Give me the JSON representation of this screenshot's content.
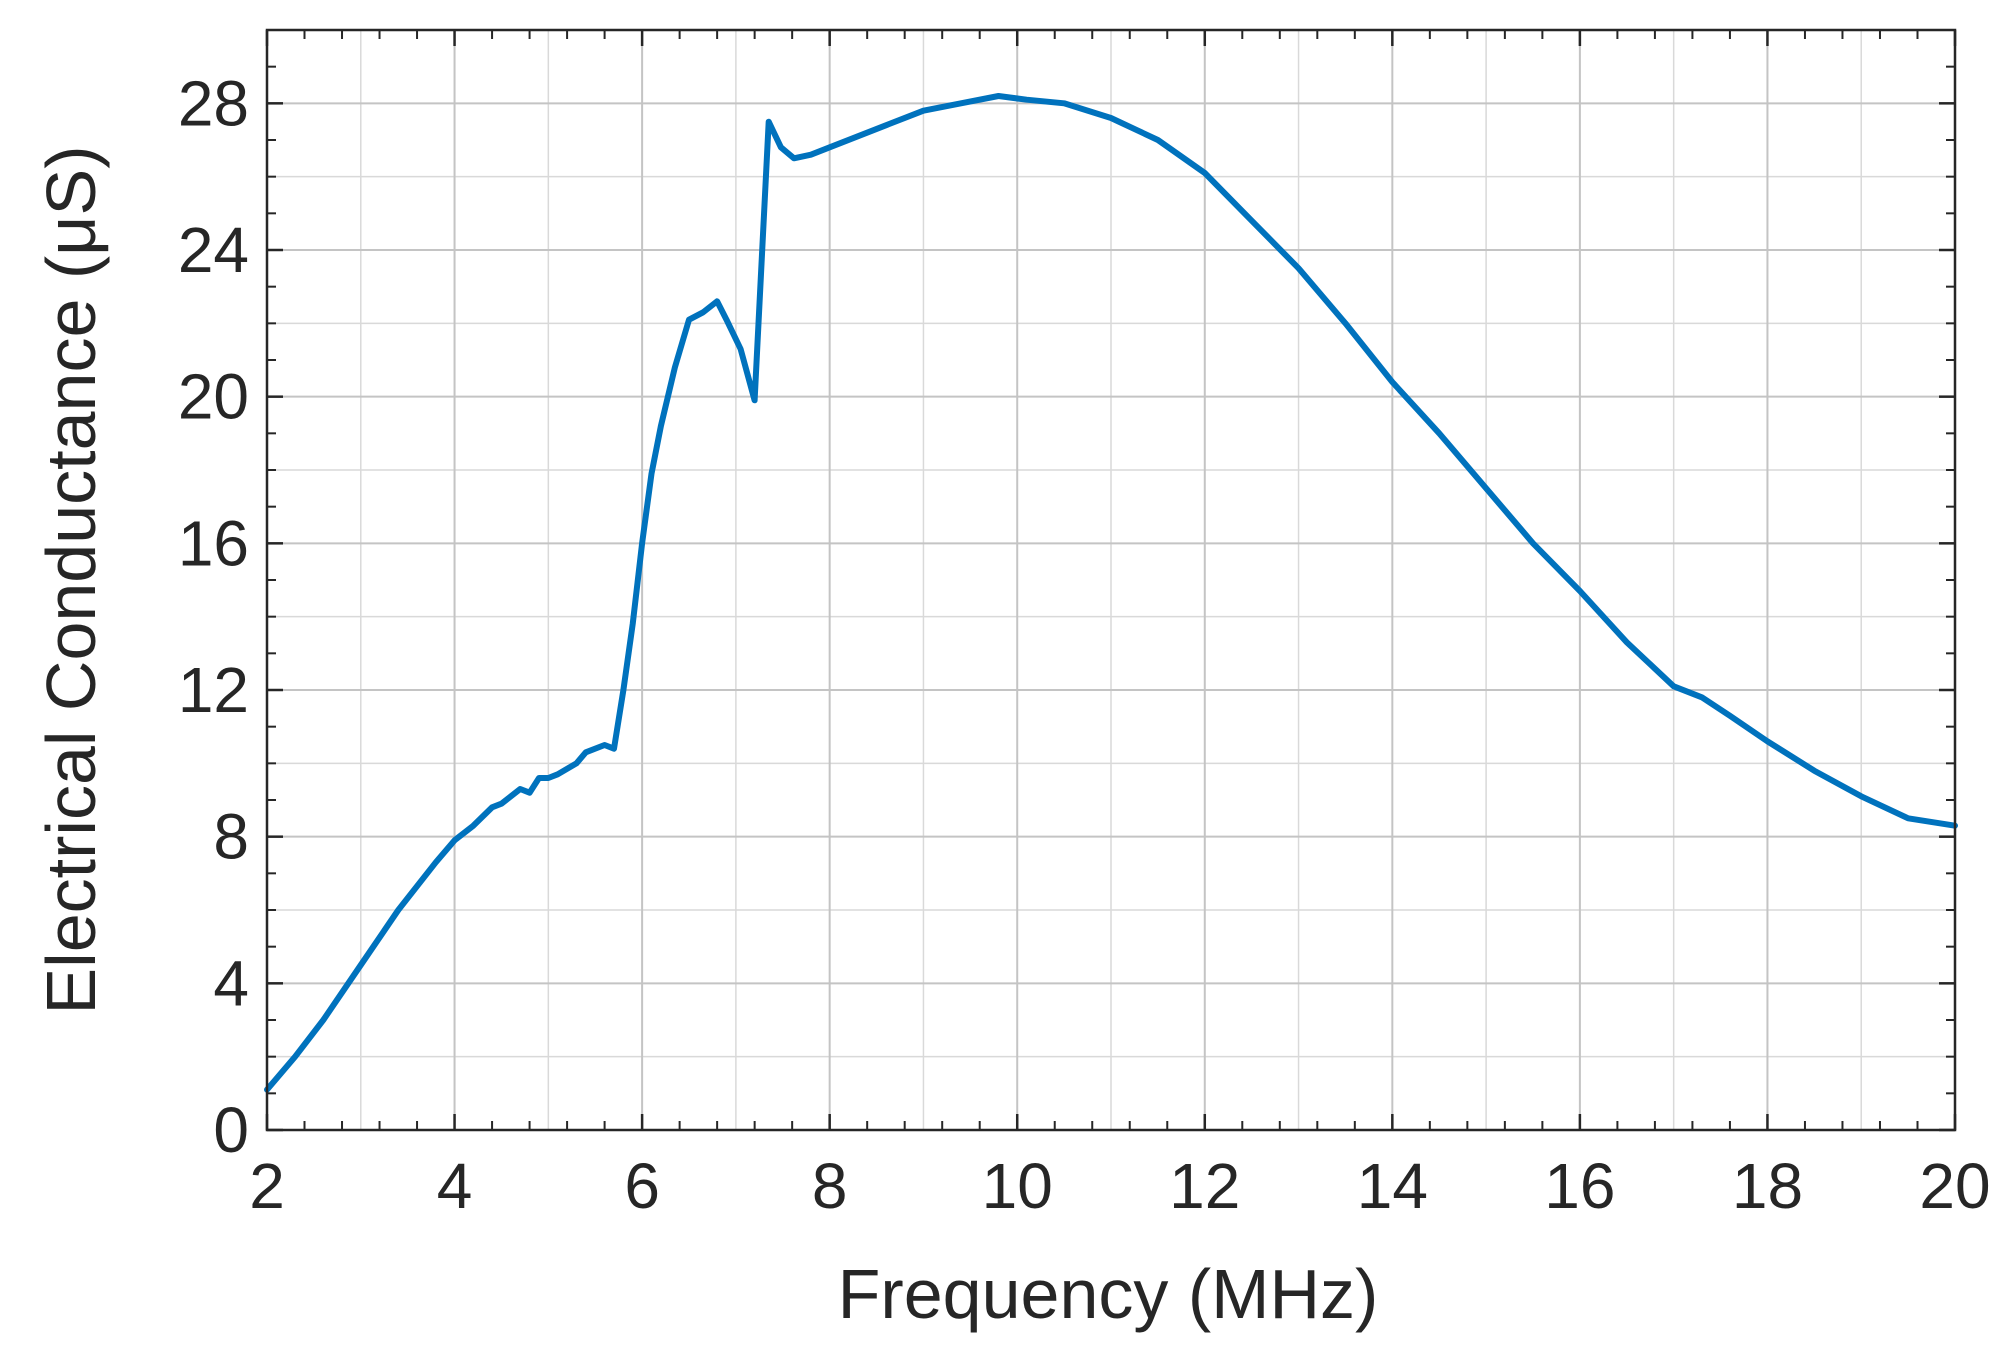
{
  "chart_data": {
    "type": "line",
    "xlabel": "Frequency (MHz)",
    "ylabel": "Electrical Conductance (μS)",
    "xlim": [
      2,
      20
    ],
    "ylim": [
      0,
      30
    ],
    "x_ticks": [
      2,
      4,
      6,
      8,
      10,
      12,
      14,
      16,
      18,
      20
    ],
    "y_ticks": [
      0,
      4,
      8,
      12,
      16,
      20,
      24,
      28
    ],
    "x_tick_labels": [
      "2",
      "4",
      "6",
      "8",
      "10",
      "12",
      "14",
      "16",
      "18",
      "20"
    ],
    "y_tick_labels": [
      "0",
      "4",
      "8",
      "12",
      "16",
      "20",
      "24",
      "28"
    ],
    "grid": true,
    "minor_grid": true,
    "line_color": "#0072BD",
    "series": [
      {
        "x": [
          2.0,
          2.3,
          2.6,
          3.0,
          3.4,
          3.8,
          4.0,
          4.2,
          4.4,
          4.5,
          4.7,
          4.8,
          4.9,
          5.0,
          5.1,
          5.3,
          5.4,
          5.6,
          5.7,
          5.8,
          5.9,
          6.0,
          6.1,
          6.2,
          6.35,
          6.5,
          6.65,
          6.8,
          6.9,
          7.05,
          7.2,
          7.35,
          7.48,
          7.62,
          7.8,
          8.0,
          8.3,
          8.6,
          9.0,
          9.4,
          9.8,
          10.1,
          10.5,
          11.0,
          11.5,
          12.0,
          12.5,
          13.0,
          13.5,
          14.0,
          14.5,
          15.0,
          15.5,
          16.0,
          16.5,
          17.0,
          17.3,
          17.6,
          18.0,
          18.5,
          19.0,
          19.5,
          20.0
        ],
        "y": [
          1.1,
          2.0,
          3.0,
          4.5,
          6.0,
          7.3,
          7.9,
          8.3,
          8.8,
          8.9,
          9.3,
          9.2,
          9.6,
          9.6,
          9.7,
          10.0,
          10.3,
          10.5,
          10.4,
          12.0,
          13.8,
          16.0,
          17.9,
          19.2,
          20.8,
          22.1,
          22.3,
          22.6,
          22.1,
          21.3,
          19.9,
          27.5,
          26.8,
          26.5,
          26.6,
          26.8,
          27.1,
          27.4,
          27.8,
          28.0,
          28.2,
          28.1,
          28.0,
          27.6,
          27.0,
          26.1,
          24.8,
          23.5,
          22.0,
          20.4,
          19.0,
          17.5,
          16.0,
          14.7,
          13.3,
          12.1,
          11.8,
          11.3,
          10.6,
          9.8,
          9.1,
          8.5,
          8.3
        ]
      }
    ]
  }
}
